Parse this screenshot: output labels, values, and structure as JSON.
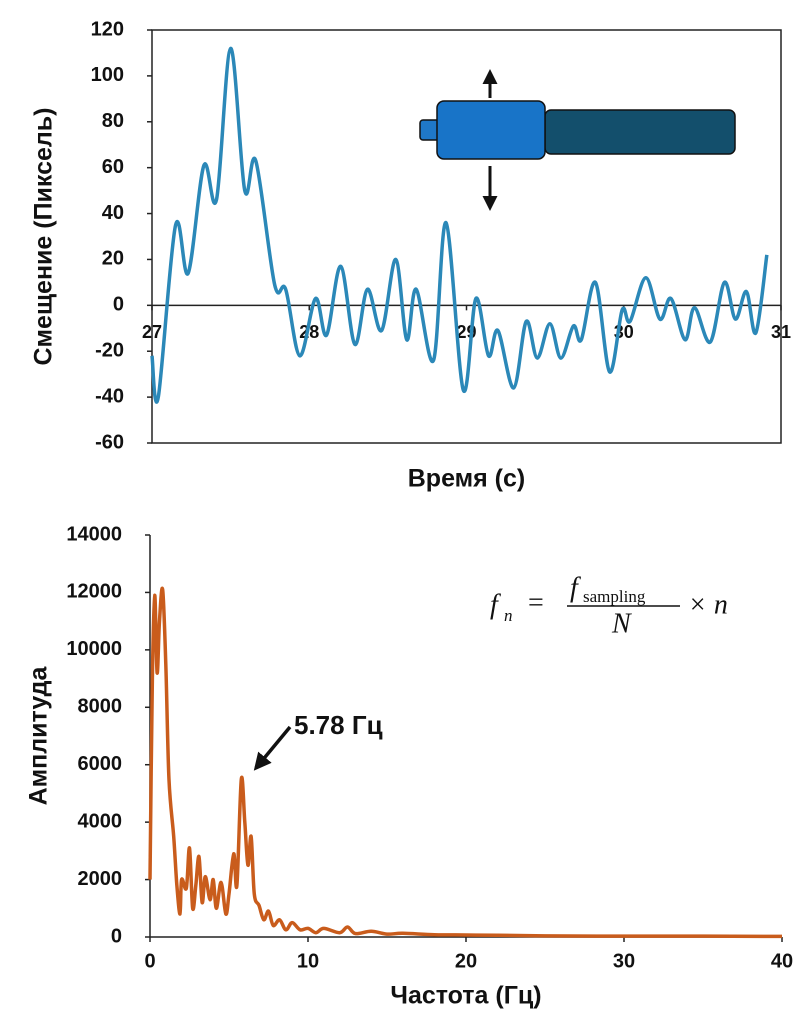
{
  "chart_data": [
    {
      "type": "line",
      "ylabel": "Смещение (Пиксель)",
      "xlabel": "Время (с)",
      "color": "#2b88b8",
      "xaxis_position": "zero",
      "frame": true,
      "xlim": [
        27,
        31
      ],
      "ylim": [
        -60,
        120
      ],
      "xticks": [
        27,
        28,
        29,
        30,
        31
      ],
      "yticks": [
        -60,
        -40,
        -20,
        0,
        20,
        40,
        60,
        80,
        100,
        120
      ],
      "x": [
        27.0,
        27.04,
        27.15,
        27.23,
        27.33,
        27.41,
        27.5,
        27.59,
        27.66,
        27.78,
        27.85,
        27.94,
        28.04,
        28.11,
        28.2,
        28.29,
        28.37,
        28.46,
        28.55,
        28.62,
        28.68,
        28.79,
        28.87,
        28.98,
        29.06,
        29.14,
        29.2,
        29.3,
        29.38,
        29.45,
        29.53,
        29.6,
        29.68,
        29.73,
        29.82,
        29.91,
        29.99,
        30.04,
        30.14,
        30.23,
        30.3,
        30.39,
        30.45,
        30.55,
        30.64,
        30.71,
        30.78,
        30.84,
        30.91
      ],
      "values": [
        -22,
        -40,
        35,
        14,
        61,
        46,
        112,
        50,
        63,
        9,
        7,
        -22,
        3,
        -13,
        17,
        -17,
        7,
        -11,
        20,
        -15,
        7,
        -24,
        36,
        -37,
        3,
        -22,
        -11,
        -36,
        -7,
        -23,
        -8,
        -23,
        -9,
        -15,
        10,
        -29,
        -2,
        -7,
        12,
        -6,
        3,
        -15,
        -1,
        -16,
        10,
        -6,
        6,
        -12,
        22
      ]
    },
    {
      "type": "line",
      "ylabel": "Амплитуда",
      "xlabel": "Частота (Гц)",
      "color": "#c95c1c",
      "xaxis_position": "bottom",
      "frame": false,
      "xlim": [
        0,
        40
      ],
      "ylim": [
        0,
        14000
      ],
      "xticks": [
        0,
        10,
        20,
        30,
        40
      ],
      "yticks": [
        0,
        2000,
        4000,
        6000,
        8000,
        10000,
        12000,
        14000
      ],
      "annotation": "5.78 Гц",
      "formula": {
        "lhs": "f",
        "lhs_sub": "n",
        "eq": "=",
        "num": "f",
        "num_sub": "sampling",
        "den": "N",
        "rhs": "× n"
      },
      "x": [
        0.0,
        0.15,
        0.3,
        0.45,
        0.6,
        0.8,
        1.0,
        1.2,
        1.5,
        1.7,
        1.9,
        2.0,
        2.3,
        2.5,
        2.7,
        2.9,
        3.1,
        3.3,
        3.5,
        3.8,
        4.0,
        4.2,
        4.5,
        4.8,
        5.0,
        5.3,
        5.5,
        5.78,
        6.0,
        6.2,
        6.4,
        6.6,
        6.9,
        7.2,
        7.5,
        7.8,
        8.2,
        8.6,
        9.0,
        9.5,
        10,
        10.5,
        11,
        12,
        12.5,
        13,
        14,
        15,
        16,
        18,
        20,
        22,
        25,
        30,
        35,
        40
      ],
      "values": [
        2000,
        9000,
        11900,
        9200,
        11000,
        12100,
        9500,
        5500,
        3500,
        1800,
        800,
        2000,
        1700,
        3100,
        1000,
        1800,
        2800,
        1200,
        2100,
        1300,
        2000,
        1000,
        1900,
        800,
        1500,
        2900,
        1800,
        5500,
        4000,
        2500,
        3500,
        1500,
        1100,
        600,
        900,
        400,
        600,
        250,
        500,
        250,
        300,
        150,
        300,
        150,
        350,
        120,
        200,
        100,
        130,
        80,
        70,
        60,
        40,
        30,
        30,
        20
      ]
    }
  ]
}
